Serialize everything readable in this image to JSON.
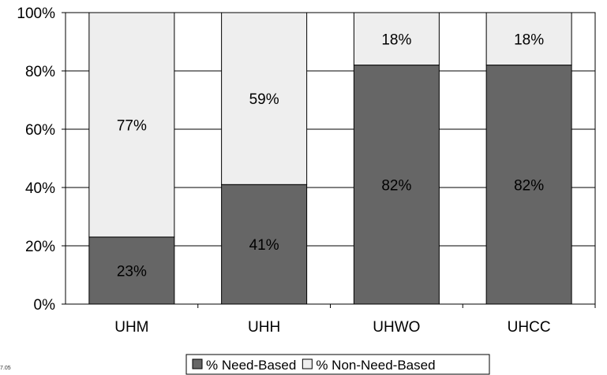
{
  "chart_data": {
    "type": "bar",
    "stacked": true,
    "categories": [
      "UHM",
      "UHH",
      "UHWO",
      "UHCC"
    ],
    "series": [
      {
        "name": "% Need-Based",
        "values": [
          23,
          41,
          82,
          82
        ],
        "labels": [
          "23%",
          "41%",
          "82%",
          "82%"
        ],
        "color": "#666666"
      },
      {
        "name": "% Non-Need-Based",
        "values": [
          77,
          59,
          18,
          18
        ],
        "labels": [
          "77%",
          "59%",
          "18%",
          "18%"
        ],
        "color": "#eeeeee"
      }
    ],
    "ylim": [
      0,
      100
    ],
    "yticks": [
      0,
      20,
      40,
      60,
      80,
      100
    ],
    "ytick_labels": [
      "0%",
      "20%",
      "40%",
      "60%",
      "80%",
      "100%"
    ],
    "grid": true,
    "legend_position": "bottom"
  },
  "footnote": "7.05"
}
